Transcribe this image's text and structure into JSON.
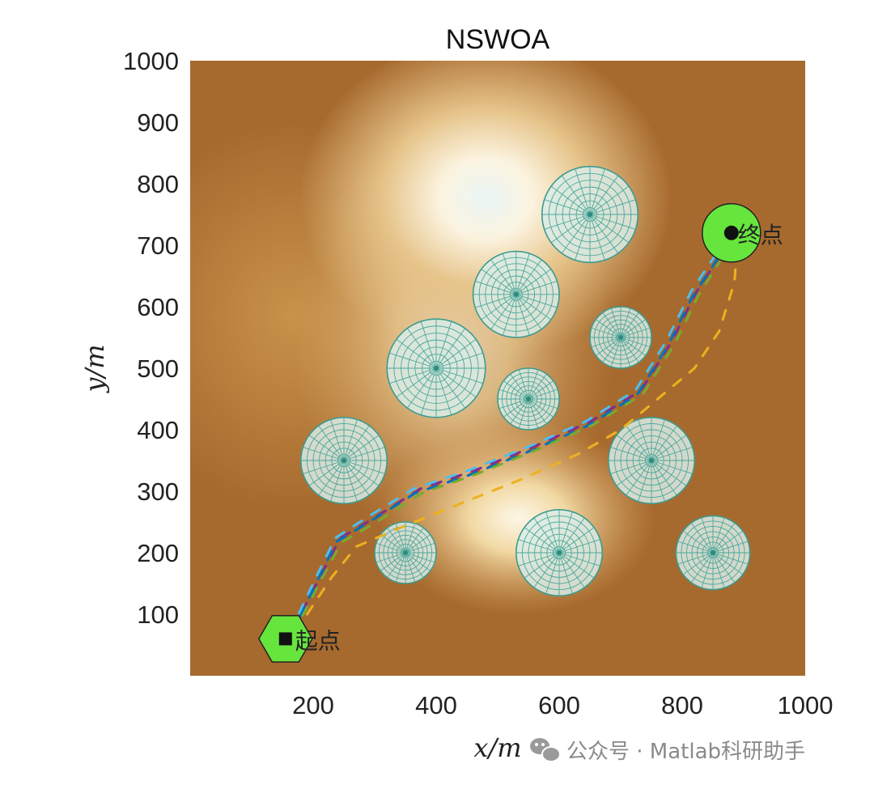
{
  "chart_data": {
    "type": "scatter",
    "title": "NSWOA",
    "xlabel": "x/m",
    "ylabel": "y/m",
    "xlim": [
      0,
      1000
    ],
    "ylim": [
      0,
      1000
    ],
    "xticks": [
      200,
      400,
      600,
      800,
      1000
    ],
    "yticks": [
      100,
      200,
      300,
      400,
      500,
      600,
      700,
      800,
      900,
      1000
    ],
    "grid": false,
    "background": "terrain elevation map",
    "start": {
      "label": "起点",
      "x": 155,
      "y": 60
    },
    "goal": {
      "label": "终点",
      "x": 880,
      "y": 720
    },
    "obstacles": [
      {
        "x": 650,
        "y": 750,
        "r": 78
      },
      {
        "x": 530,
        "y": 620,
        "r": 70
      },
      {
        "x": 700,
        "y": 550,
        "r": 50
      },
      {
        "x": 400,
        "y": 500,
        "r": 80
      },
      {
        "x": 550,
        "y": 450,
        "r": 50
      },
      {
        "x": 250,
        "y": 350,
        "r": 70
      },
      {
        "x": 750,
        "y": 350,
        "r": 70
      },
      {
        "x": 350,
        "y": 200,
        "r": 50
      },
      {
        "x": 600,
        "y": 200,
        "r": 70
      },
      {
        "x": 850,
        "y": 200,
        "r": 60
      }
    ],
    "series": [
      {
        "color": "#d95319",
        "points": [
          [
            180,
            100
          ],
          [
            210,
            160
          ],
          [
            240,
            220
          ],
          [
            290,
            250
          ],
          [
            370,
            300
          ],
          [
            460,
            330
          ],
          [
            560,
            370
          ],
          [
            650,
            410
          ],
          [
            730,
            460
          ],
          [
            780,
            540
          ],
          [
            820,
            620
          ],
          [
            860,
            680
          ],
          [
            880,
            720
          ]
        ]
      },
      {
        "color": "#7e2f8e",
        "points": [
          [
            182,
            104
          ],
          [
            213,
            164
          ],
          [
            244,
            224
          ],
          [
            295,
            254
          ],
          [
            374,
            304
          ],
          [
            463,
            334
          ],
          [
            562,
            374
          ],
          [
            652,
            414
          ],
          [
            733,
            464
          ],
          [
            783,
            544
          ],
          [
            823,
            624
          ],
          [
            862,
            684
          ],
          [
            880,
            720
          ]
        ]
      },
      {
        "color": "#0072bd",
        "points": [
          [
            178,
            96
          ],
          [
            208,
            157
          ],
          [
            238,
            218
          ],
          [
            286,
            247
          ],
          [
            366,
            297
          ],
          [
            456,
            327
          ],
          [
            557,
            367
          ],
          [
            647,
            407
          ],
          [
            727,
            457
          ],
          [
            777,
            537
          ],
          [
            817,
            617
          ],
          [
            857,
            677
          ],
          [
            880,
            720
          ]
        ]
      },
      {
        "color": "#77ac30",
        "points": [
          [
            183,
            98
          ],
          [
            214,
            158
          ],
          [
            246,
            217
          ],
          [
            298,
            247
          ],
          [
            377,
            297
          ],
          [
            466,
            328
          ],
          [
            565,
            368
          ],
          [
            655,
            408
          ],
          [
            736,
            458
          ],
          [
            787,
            538
          ],
          [
            826,
            618
          ],
          [
            864,
            678
          ],
          [
            880,
            720
          ]
        ]
      },
      {
        "color": "#4dbeee",
        "points": [
          [
            177,
            102
          ],
          [
            206,
            163
          ],
          [
            236,
            224
          ],
          [
            282,
            254
          ],
          [
            363,
            304
          ],
          [
            453,
            334
          ],
          [
            554,
            374
          ],
          [
            644,
            414
          ],
          [
            724,
            464
          ],
          [
            774,
            544
          ],
          [
            814,
            624
          ],
          [
            854,
            684
          ],
          [
            880,
            720
          ]
        ]
      },
      {
        "color": "#edb120",
        "points": [
          [
            190,
            100
          ],
          [
            230,
            160
          ],
          [
            270,
            210
          ],
          [
            340,
            240
          ],
          [
            440,
            280
          ],
          [
            540,
            320
          ],
          [
            630,
            360
          ],
          [
            700,
            400
          ],
          [
            760,
            450
          ],
          [
            820,
            500
          ],
          [
            860,
            560
          ],
          [
            885,
            640
          ],
          [
            890,
            710
          ]
        ]
      }
    ]
  },
  "watermark": {
    "text": "公众号 · Matlab科研助手"
  }
}
